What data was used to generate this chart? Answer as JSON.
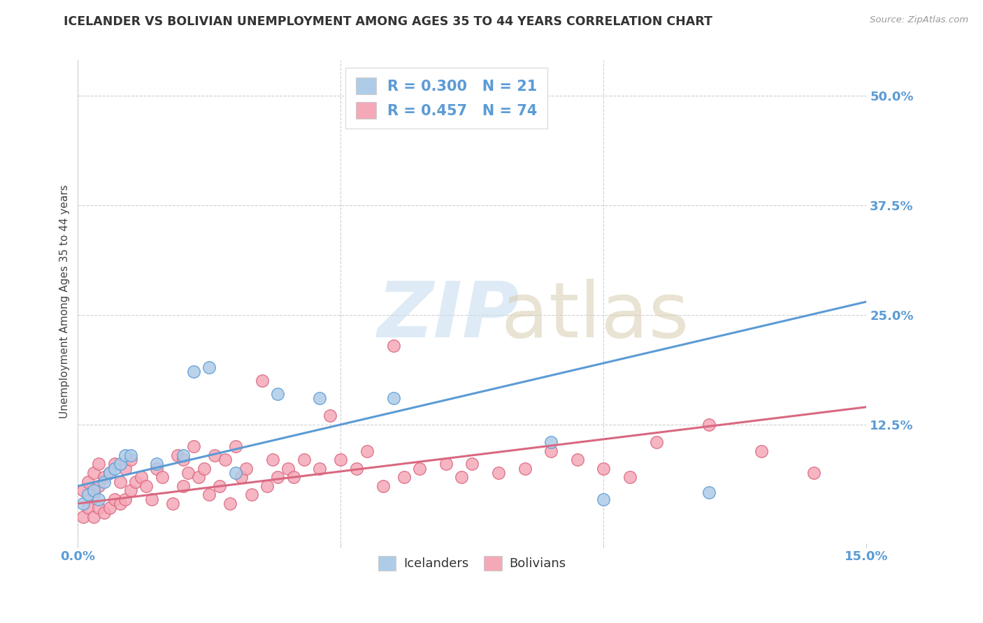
{
  "title": "ICELANDER VS BOLIVIAN UNEMPLOYMENT AMONG AGES 35 TO 44 YEARS CORRELATION CHART",
  "source": "Source: ZipAtlas.com",
  "ylabel": "Unemployment Among Ages 35 to 44 years",
  "xlim": [
    0.0,
    0.15
  ],
  "ylim": [
    -0.01,
    0.54
  ],
  "x_ticks": [
    0.0,
    0.05,
    0.1,
    0.15
  ],
  "x_tick_labels": [
    "0.0%",
    "",
    "",
    "15.0%"
  ],
  "y_tick_labels_right": [
    "50.0%",
    "37.5%",
    "25.0%",
    "12.5%"
  ],
  "y_ticks_right": [
    0.5,
    0.375,
    0.25,
    0.125
  ],
  "background_color": "#ffffff",
  "grid_color": "#d0d0d0",
  "icelander_color": "#aecce8",
  "bolivian_color": "#f5a8b8",
  "icelander_line_color": "#5b9bd5",
  "bolivian_line_color": "#d96880",
  "R_icelander": 0.3,
  "N_icelander": 21,
  "R_bolivian": 0.457,
  "N_bolivian": 74,
  "legend_label_icelander": "Icelanders",
  "legend_label_bolivian": "Bolivians",
  "icelander_x": [
    0.001,
    0.002,
    0.003,
    0.004,
    0.005,
    0.006,
    0.007,
    0.008,
    0.009,
    0.01,
    0.015,
    0.02,
    0.022,
    0.025,
    0.03,
    0.038,
    0.046,
    0.06,
    0.09,
    0.1,
    0.12
  ],
  "icelander_y": [
    0.035,
    0.045,
    0.05,
    0.04,
    0.06,
    0.07,
    0.075,
    0.08,
    0.09,
    0.09,
    0.08,
    0.09,
    0.185,
    0.19,
    0.07,
    0.16,
    0.155,
    0.155,
    0.105,
    0.04,
    0.048
  ],
  "bolivian_x": [
    0.001,
    0.001,
    0.002,
    0.002,
    0.003,
    0.003,
    0.003,
    0.004,
    0.004,
    0.004,
    0.005,
    0.005,
    0.006,
    0.006,
    0.007,
    0.007,
    0.008,
    0.008,
    0.009,
    0.009,
    0.01,
    0.01,
    0.011,
    0.012,
    0.013,
    0.014,
    0.015,
    0.016,
    0.018,
    0.019,
    0.02,
    0.02,
    0.021,
    0.022,
    0.023,
    0.024,
    0.025,
    0.026,
    0.027,
    0.028,
    0.029,
    0.03,
    0.031,
    0.032,
    0.033,
    0.035,
    0.036,
    0.037,
    0.038,
    0.04,
    0.041,
    0.043,
    0.046,
    0.048,
    0.05,
    0.053,
    0.055,
    0.058,
    0.06,
    0.062,
    0.065,
    0.07,
    0.073,
    0.075,
    0.08,
    0.085,
    0.09,
    0.095,
    0.1,
    0.105,
    0.11,
    0.12,
    0.13,
    0.14
  ],
  "bolivian_y": [
    0.02,
    0.05,
    0.03,
    0.06,
    0.02,
    0.045,
    0.07,
    0.03,
    0.055,
    0.08,
    0.025,
    0.065,
    0.03,
    0.07,
    0.04,
    0.08,
    0.035,
    0.06,
    0.04,
    0.075,
    0.05,
    0.085,
    0.06,
    0.065,
    0.055,
    0.04,
    0.075,
    0.065,
    0.035,
    0.09,
    0.055,
    0.085,
    0.07,
    0.1,
    0.065,
    0.075,
    0.045,
    0.09,
    0.055,
    0.085,
    0.035,
    0.1,
    0.065,
    0.075,
    0.045,
    0.175,
    0.055,
    0.085,
    0.065,
    0.075,
    0.065,
    0.085,
    0.075,
    0.135,
    0.085,
    0.075,
    0.095,
    0.055,
    0.215,
    0.065,
    0.075,
    0.08,
    0.065,
    0.08,
    0.07,
    0.075,
    0.095,
    0.085,
    0.075,
    0.065,
    0.105,
    0.125,
    0.095,
    0.07
  ],
  "icel_line_x0": 0.0,
  "icel_line_y0": 0.055,
  "icel_line_x1": 0.15,
  "icel_line_y1": 0.265,
  "boli_line_x0": 0.0,
  "boli_line_y0": 0.035,
  "boli_line_x1": 0.15,
  "boli_line_y1": 0.145
}
